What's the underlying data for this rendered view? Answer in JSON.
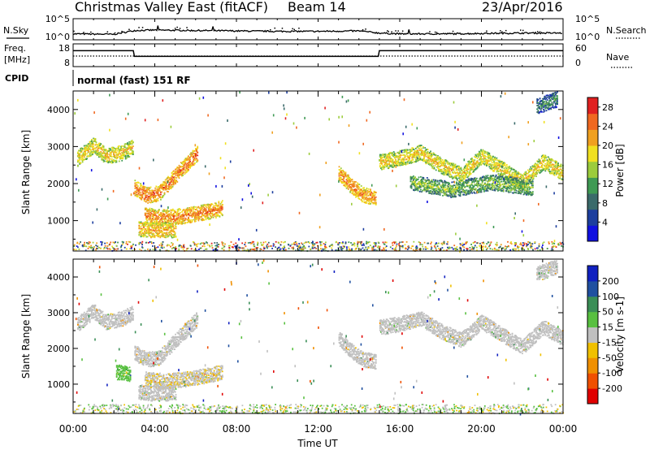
{
  "header": {
    "title": "Christmas Valley East (fitACF)",
    "beam": "Beam 14",
    "date": "23/Apr/2016"
  },
  "strip_labels": {
    "nsky": "N.Sky",
    "nsearch": "N.Search",
    "freq_line1": "Freq.",
    "freq_line2": "[MHz]",
    "nave": "Nave",
    "cpid": "CPID",
    "cpid_text": "normal (fast) 151 RF"
  },
  "strip_ticks": {
    "noise_left": [
      "10^5",
      "10^0"
    ],
    "noise_right": [
      "10^5",
      "10^0"
    ],
    "freq_left": [
      "18",
      "8"
    ],
    "freq_right": [
      "60",
      "0"
    ]
  },
  "time_axis": {
    "label": "Time UT",
    "ticks": [
      "00:00",
      "04:00",
      "08:00",
      "12:00",
      "16:00",
      "20:00",
      "00:00"
    ]
  },
  "colors": {
    "power": [
      "#1010e0",
      "#1c3e9e",
      "#3a6a6a",
      "#3f9a54",
      "#9ccc3c",
      "#f0e020",
      "#f0a020",
      "#f06820",
      "#e02020"
    ],
    "velocity": [
      "#e00000",
      "#f05000",
      "#f09000",
      "#f0c000",
      "#c0c0c0",
      "#58c040",
      "#3a8e56",
      "#2050a0",
      "#1020c0"
    ]
  },
  "chart_data": [
    {
      "type": "line",
      "panel": "noise",
      "x": [
        0,
        2,
        3,
        4,
        6,
        8,
        10,
        12,
        14,
        15,
        16,
        18,
        20,
        22,
        24
      ],
      "series": [
        {
          "name": "N.Sky",
          "values": [
            1.4,
            1.3,
            2.2,
            2.3,
            2.2,
            2.1,
            2.0,
            2.0,
            2.1,
            1.6,
            1.4,
            1.4,
            1.5,
            1.6,
            1.6
          ]
        }
      ],
      "ylabel": "N.Sky",
      "ylim": [
        0,
        5
      ],
      "scale": "log"
    },
    {
      "type": "line",
      "panel": "freq",
      "x": [
        0,
        2.95,
        3.0,
        14.95,
        15.0,
        24
      ],
      "series": [
        {
          "name": "Freq.",
          "values": [
            15,
            15,
            12.5,
            12.5,
            15,
            15
          ]
        }
      ],
      "ylabel": "Freq. [MHz]",
      "ylim": [
        8,
        18
      ]
    },
    {
      "type": "heatmap",
      "panel": "power",
      "title": "",
      "xlabel": "Time UT",
      "ylabel": "Slant Range [km]",
      "xlim": [
        0,
        24
      ],
      "ylim": [
        180,
        4500
      ],
      "yticks": [
        1000,
        2000,
        3000,
        4000
      ],
      "colorbar": {
        "label": "Power [dB]",
        "ticks": [
          4,
          8,
          12,
          16,
          20,
          24,
          28
        ],
        "range": [
          0,
          30
        ]
      },
      "features": [
        {
          "t": [
            0.2,
            1.0,
            1.6,
            2.4,
            2.9
          ],
          "r": [
            2700,
            3050,
            2750,
            2850,
            3000
          ],
          "power": 18
        },
        {
          "t": [
            3.0,
            3.6,
            4.2,
            5.2,
            6.1
          ],
          "r": [
            1900,
            1700,
            1750,
            2350,
            2850
          ],
          "power": 23
        },
        {
          "t": [
            3.5,
            4.5,
            5.5,
            6.5,
            7.3
          ],
          "r": [
            1150,
            1100,
            1150,
            1250,
            1350
          ],
          "power": 22
        },
        {
          "t": [
            3.2,
            3.8,
            4.4,
            5.0
          ],
          "r": [
            800,
            760,
            750,
            780
          ],
          "power": 20
        },
        {
          "t": [
            13.0,
            13.6,
            14.2,
            14.8
          ],
          "r": [
            2300,
            1950,
            1700,
            1650
          ],
          "power": 22
        },
        {
          "t": [
            15.0,
            16.0,
            17.0,
            18.0,
            19.0,
            20.0,
            21.0,
            22.0,
            23.0,
            24.0
          ],
          "r": [
            2600,
            2700,
            2850,
            2500,
            2250,
            2750,
            2400,
            2050,
            2600,
            2300
          ],
          "power": 18
        },
        {
          "t": [
            16.5,
            18.5,
            20.5,
            22.5
          ],
          "r": [
            2050,
            1850,
            2050,
            1900
          ],
          "power": 13
        },
        {
          "t": [
            22.7,
            23.2,
            23.7
          ],
          "r": [
            4100,
            4200,
            4300
          ],
          "power": 9
        }
      ]
    },
    {
      "type": "heatmap",
      "panel": "velocity",
      "title": "",
      "xlabel": "Time UT",
      "ylabel": "Slant Range [km]",
      "xlim": [
        0,
        24
      ],
      "ylim": [
        180,
        4500
      ],
      "yticks": [
        1000,
        2000,
        3000,
        4000
      ],
      "colorbar": {
        "label": "Velocity [m s-1]",
        "ticks": [
          200,
          100,
          50,
          15,
          -15,
          -50,
          -100,
          -200
        ],
        "range": [
          -250,
          250
        ]
      },
      "features": [
        {
          "t": [
            0.2,
            1.0,
            1.6,
            2.4,
            2.9
          ],
          "r": [
            2700,
            3050,
            2750,
            2850,
            3000
          ],
          "velocity": 0
        },
        {
          "t": [
            3.0,
            3.6,
            4.2,
            5.2,
            6.1
          ],
          "r": [
            1900,
            1700,
            1750,
            2350,
            2850
          ],
          "velocity": 0
        },
        {
          "t": [
            3.5,
            4.5,
            5.5,
            6.5,
            7.3
          ],
          "r": [
            1150,
            1100,
            1150,
            1250,
            1350
          ],
          "velocity": -20
        },
        {
          "t": [
            3.2,
            3.8,
            4.4,
            5.0
          ],
          "r": [
            800,
            760,
            750,
            780
          ],
          "velocity": 0
        },
        {
          "t": [
            2.1,
            2.8
          ],
          "r": [
            1350,
            1300
          ],
          "velocity": 60
        },
        {
          "t": [
            13.0,
            13.6,
            14.2,
            14.8
          ],
          "r": [
            2300,
            1950,
            1700,
            1650
          ],
          "velocity": 0
        },
        {
          "t": [
            15.0,
            16.0,
            17.0,
            18.0,
            19.0,
            20.0,
            21.0,
            22.0,
            23.0,
            24.0
          ],
          "r": [
            2600,
            2700,
            2850,
            2500,
            2250,
            2750,
            2400,
            2050,
            2600,
            2300
          ],
          "velocity": 0
        },
        {
          "t": [
            22.7,
            23.2,
            23.7
          ],
          "r": [
            4100,
            4200,
            4300
          ],
          "velocity": 0
        }
      ]
    }
  ]
}
